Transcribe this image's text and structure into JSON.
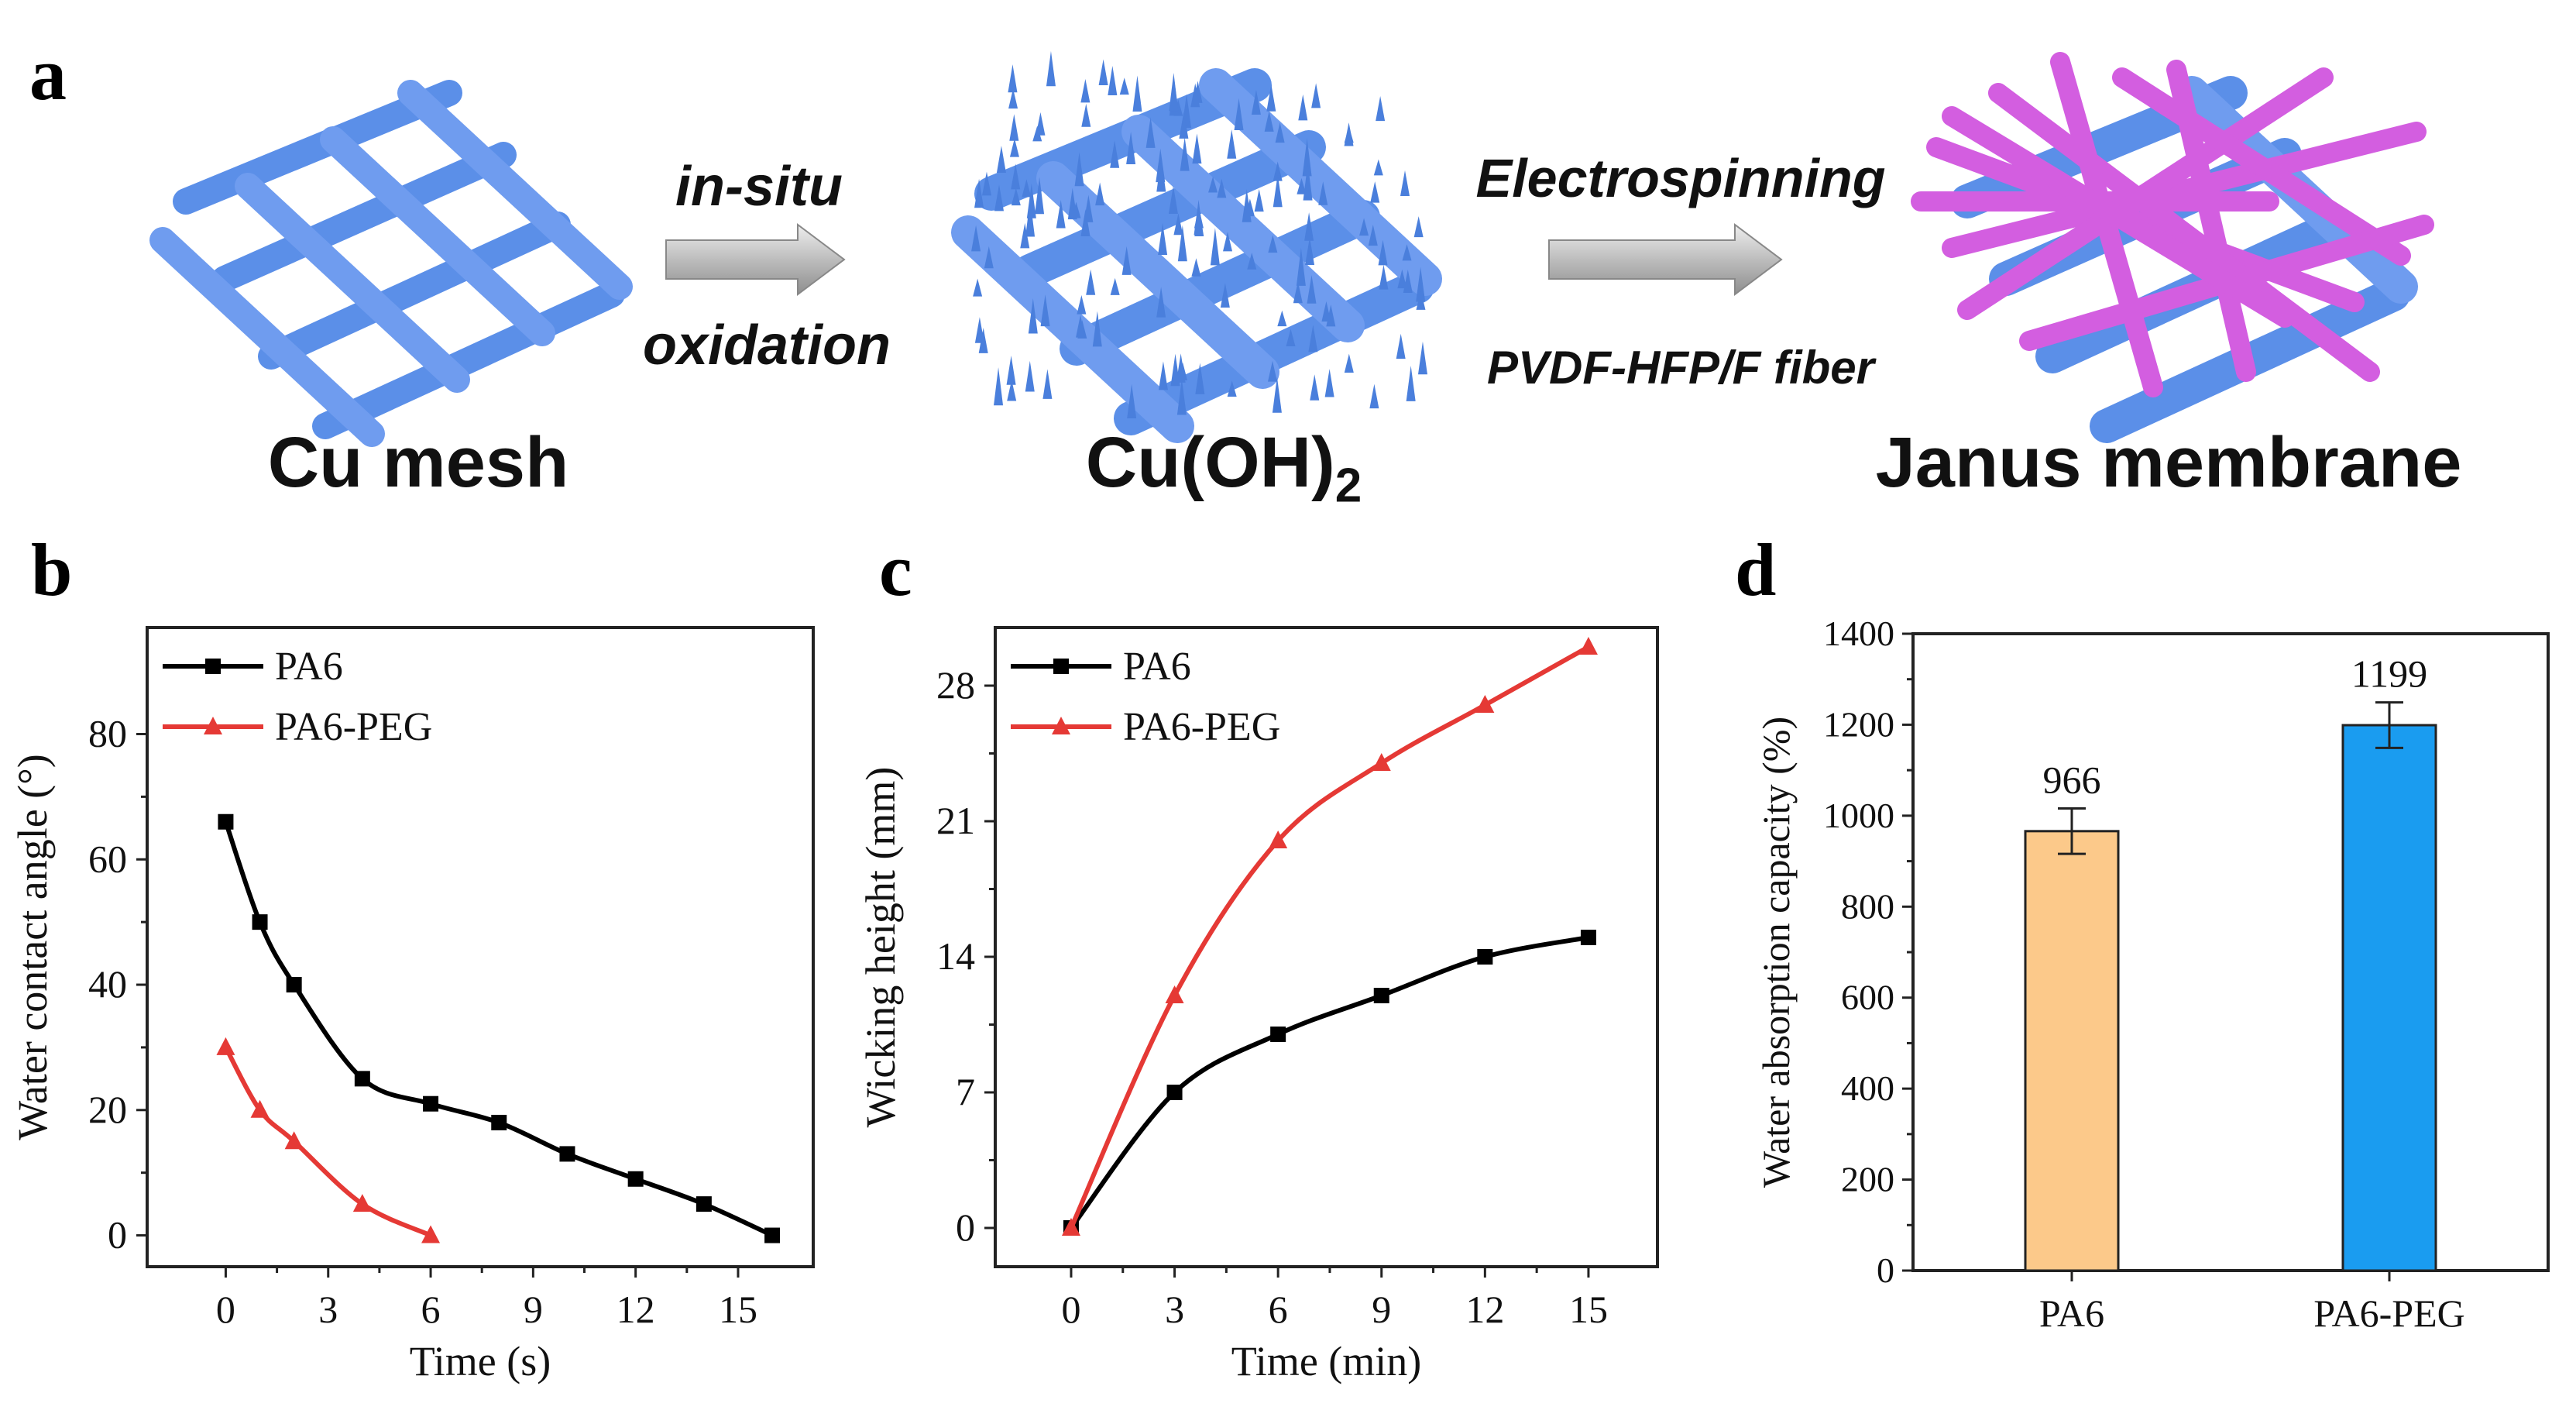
{
  "panel_a": {
    "letter": "a",
    "labels": [
      "Cu mesh",
      "Cu(OH)",
      "Janus membrane"
    ],
    "subscript": "2",
    "arrow1": {
      "top": "in-situ",
      "bottom": "oxidation"
    },
    "arrow2": {
      "top": "Electrospinning",
      "bottom": "PVDF-HFP/F fiber"
    },
    "colors": {
      "mesh": "#5b8fe8",
      "fiber": "#d35ee0",
      "arrow": "#c8c8c8"
    }
  },
  "chart_data": [
    {
      "panel": "b",
      "type": "line",
      "xlabel": "Time (s)",
      "ylabel": "Water contact angle (°)",
      "xlim": [
        -2.3,
        17.2
      ],
      "ylim": [
        -5,
        97
      ],
      "xticks": [
        0,
        3,
        6,
        9,
        12,
        15
      ],
      "yticks": [
        0,
        20,
        40,
        60,
        80
      ],
      "legend_position": "top-left",
      "series": [
        {
          "name": "PA6",
          "color": "#000000",
          "marker": "square",
          "x": [
            0,
            1,
            2,
            4,
            6,
            8,
            10,
            12,
            14,
            16
          ],
          "y": [
            66,
            50,
            40,
            25,
            21,
            18,
            13,
            9,
            5,
            0
          ]
        },
        {
          "name": "PA6-PEG",
          "color": "#e53935",
          "marker": "triangle",
          "x": [
            0,
            1,
            2,
            4,
            6
          ],
          "y": [
            30,
            20,
            15,
            5,
            0
          ]
        }
      ]
    },
    {
      "panel": "c",
      "type": "line",
      "xlabel": "Time (min)",
      "ylabel": "Wicking height (mm)",
      "xlim": [
        -2.2,
        17
      ],
      "ylim": [
        -2,
        31
      ],
      "xticks": [
        0,
        3,
        6,
        9,
        12,
        15
      ],
      "yticks": [
        0,
        7,
        14,
        21,
        28
      ],
      "legend_position": "top-left",
      "series": [
        {
          "name": "PA6",
          "color": "#000000",
          "marker": "square",
          "x": [
            0,
            3,
            6,
            9,
            12,
            15
          ],
          "y": [
            0,
            7,
            10,
            12,
            14,
            15
          ]
        },
        {
          "name": "PA6-PEG",
          "color": "#e53935",
          "marker": "triangle",
          "x": [
            0,
            3,
            6,
            9,
            12,
            15
          ],
          "y": [
            0,
            12,
            20,
            24,
            27,
            30
          ]
        }
      ]
    },
    {
      "panel": "d",
      "type": "bar",
      "ylabel": "Water absorption capacity (%)",
      "categories": [
        "PA6",
        "PA6-PEG"
      ],
      "values": [
        966,
        1199
      ],
      "errors": [
        50,
        50
      ],
      "value_labels": [
        "966",
        "1199"
      ],
      "colors": [
        "#fcc98a",
        "#1a9cf0"
      ],
      "ylim": [
        0,
        1400
      ],
      "yticks": [
        0,
        200,
        400,
        600,
        800,
        1000,
        1200,
        1400
      ]
    }
  ]
}
